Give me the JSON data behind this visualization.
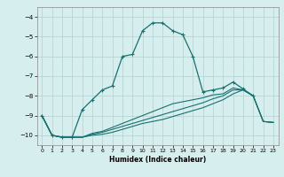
{
  "title": "",
  "xlabel": "Humidex (Indice chaleur)",
  "ylabel": "",
  "xlim": [
    -0.5,
    23.5
  ],
  "ylim": [
    -10.5,
    -3.5
  ],
  "yticks": [
    -10,
    -9,
    -8,
    -7,
    -6,
    -5,
    -4
  ],
  "xticks": [
    0,
    1,
    2,
    3,
    4,
    5,
    6,
    7,
    8,
    9,
    10,
    11,
    12,
    13,
    14,
    15,
    16,
    17,
    18,
    19,
    20,
    21,
    22,
    23
  ],
  "bg_color": "#d6eeee",
  "grid_color": "#b0d0d0",
  "line_color": "#1a7070",
  "series": [
    {
      "x": [
        0,
        1,
        2,
        3,
        4,
        5,
        6,
        7,
        8,
        9,
        10,
        11,
        12,
        13,
        14,
        15,
        16,
        17,
        18,
        19,
        20,
        21
      ],
      "y": [
        -9.0,
        -10.0,
        -10.1,
        -10.1,
        -8.7,
        -8.2,
        -7.7,
        -7.5,
        -6.0,
        -5.9,
        -4.7,
        -4.3,
        -4.3,
        -4.7,
        -4.9,
        -6.0,
        -7.8,
        -7.7,
        -7.6,
        -7.3,
        -7.65,
        -8.0
      ],
      "marker": "+"
    },
    {
      "x": [
        0,
        1,
        2,
        3,
        4,
        5,
        6,
        7,
        8,
        9,
        10,
        11,
        12,
        13,
        14,
        15,
        16,
        17,
        18,
        19,
        20,
        21,
        22,
        23
      ],
      "y": [
        -9.0,
        -10.0,
        -10.1,
        -10.1,
        -10.1,
        -9.9,
        -9.8,
        -9.6,
        -9.4,
        -9.2,
        -9.0,
        -8.8,
        -8.6,
        -8.4,
        -8.3,
        -8.2,
        -8.1,
        -7.95,
        -7.9,
        -7.6,
        -7.7,
        -8.0,
        -9.3,
        -9.35
      ],
      "marker": null
    },
    {
      "x": [
        0,
        1,
        2,
        3,
        4,
        5,
        6,
        7,
        8,
        9,
        10,
        11,
        12,
        13,
        14,
        15,
        16,
        17,
        18,
        19,
        20,
        21,
        22,
        23
      ],
      "y": [
        -9.0,
        -10.0,
        -10.1,
        -10.1,
        -10.1,
        -9.95,
        -9.85,
        -9.7,
        -9.55,
        -9.4,
        -9.25,
        -9.1,
        -8.95,
        -8.8,
        -8.65,
        -8.5,
        -8.35,
        -8.15,
        -8.0,
        -7.7,
        -7.7,
        -8.0,
        -9.3,
        -9.35
      ],
      "marker": null
    },
    {
      "x": [
        0,
        1,
        2,
        3,
        4,
        5,
        6,
        7,
        8,
        9,
        10,
        11,
        12,
        13,
        14,
        15,
        16,
        17,
        18,
        19,
        20,
        21,
        22,
        23
      ],
      "y": [
        -9.0,
        -10.0,
        -10.1,
        -10.1,
        -10.1,
        -10.0,
        -9.95,
        -9.85,
        -9.7,
        -9.55,
        -9.4,
        -9.3,
        -9.2,
        -9.05,
        -8.9,
        -8.75,
        -8.6,
        -8.4,
        -8.2,
        -7.9,
        -7.7,
        -8.0,
        -9.3,
        -9.35
      ],
      "marker": null
    }
  ]
}
